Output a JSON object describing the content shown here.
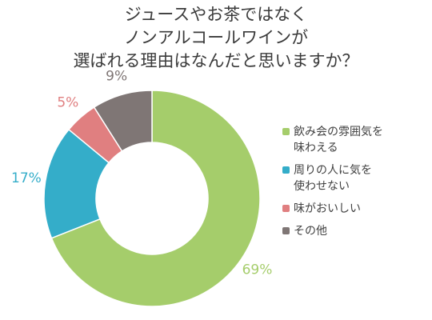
{
  "chart_data": {
    "type": "pie",
    "donut": true,
    "title": [
      "ジュースやお茶ではなく",
      "ノンアルコールワインが",
      "選ばれる理由はなんだと思いますか？"
    ],
    "slices": [
      {
        "label": [
          "飲み会の雰囲気を",
          "味わえる"
        ],
        "value": 69,
        "display": "69%",
        "color": "#a5cd6b"
      },
      {
        "label": [
          "周りの人に気を",
          "使わせない"
        ],
        "value": 17,
        "display": "17%",
        "color": "#34adc9"
      },
      {
        "label": [
          "味がおいしい"
        ],
        "value": 5,
        "display": "5%",
        "color": "#e07f80"
      },
      {
        "label": [
          "その他"
        ],
        "value": 9,
        "display": "9%",
        "color": "#7f7675"
      }
    ],
    "legend_position": "right",
    "start": "top",
    "direction": "clockwise"
  }
}
